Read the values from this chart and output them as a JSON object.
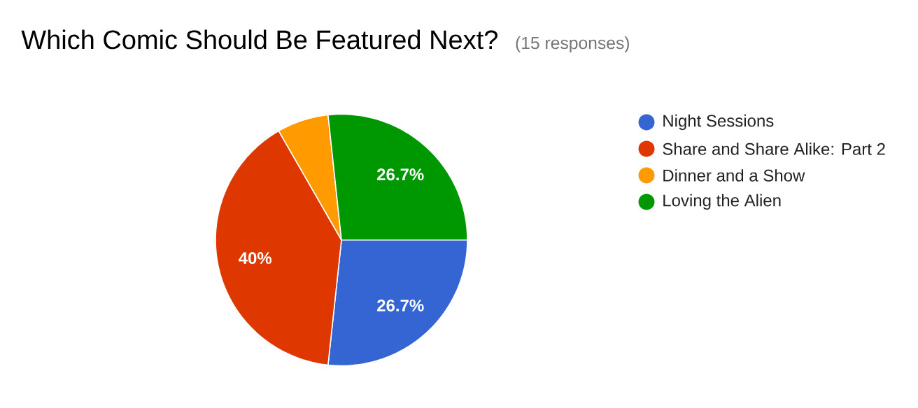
{
  "chart_data": {
    "type": "pie",
    "title": "Which Comic Should Be Featured Next?",
    "subtitle": "(15 responses)",
    "categories": [
      "Night Sessions",
      "Share and Share Alike: Part 2",
      "Dinner and a Show",
      "Loving the Alien"
    ],
    "values": [
      26.7,
      40,
      6.6,
      26.7
    ],
    "colors": [
      "#3565d2",
      "#df3700",
      "#ff9a00",
      "#009800"
    ],
    "value_labels": [
      "26.7%",
      "40%",
      null,
      "26.7%"
    ],
    "legend": "right"
  }
}
